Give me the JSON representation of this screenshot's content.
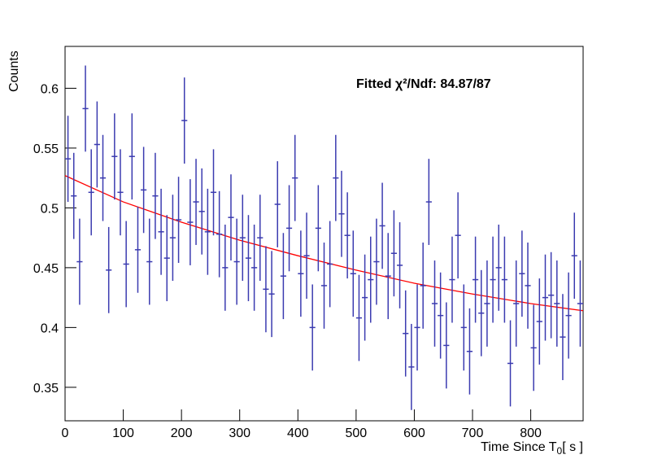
{
  "chart_data": {
    "type": "errorbar",
    "y_label": "Counts",
    "x_label_parts": [
      "Time Since T",
      "0",
      "[ s ]"
    ],
    "annotation": "Fitted χ²/Ndf: 84.87/87",
    "xlim": [
      0,
      890
    ],
    "ylim": [
      0.322,
      0.635
    ],
    "xticks": [
      0,
      100,
      200,
      300,
      400,
      500,
      600,
      700,
      800
    ],
    "yticks": [
      0.35,
      0.4,
      0.45,
      0.5,
      0.55,
      0.6
    ],
    "bin_half_width": 5,
    "marker_color": "#3b3bb0",
    "fit_color": "#ff0000",
    "x": [
      5,
      15,
      25,
      35,
      45,
      55,
      65,
      75,
      85,
      95,
      105,
      115,
      125,
      135,
      145,
      155,
      165,
      175,
      185,
      195,
      205,
      215,
      225,
      235,
      245,
      255,
      265,
      275,
      285,
      295,
      305,
      315,
      325,
      335,
      345,
      355,
      365,
      375,
      385,
      395,
      405,
      415,
      425,
      435,
      445,
      455,
      465,
      475,
      485,
      495,
      505,
      515,
      525,
      535,
      545,
      555,
      565,
      575,
      585,
      595,
      605,
      615,
      625,
      635,
      645,
      655,
      665,
      675,
      685,
      695,
      705,
      715,
      725,
      735,
      745,
      755,
      765,
      775,
      785,
      795,
      805,
      815,
      825,
      835,
      845,
      855,
      865,
      875,
      885
    ],
    "values": [
      0.541,
      0.51,
      0.455,
      0.583,
      0.513,
      0.553,
      0.525,
      0.448,
      0.543,
      0.513,
      0.453,
      0.543,
      0.465,
      0.515,
      0.455,
      0.51,
      0.48,
      0.458,
      0.475,
      0.49,
      0.573,
      0.488,
      0.505,
      0.497,
      0.48,
      0.513,
      0.478,
      0.45,
      0.492,
      0.455,
      0.475,
      0.458,
      0.45,
      0.475,
      0.432,
      0.428,
      0.503,
      0.443,
      0.483,
      0.525,
      0.445,
      0.46,
      0.4,
      0.483,
      0.435,
      0.453,
      0.525,
      0.495,
      0.477,
      0.445,
      0.408,
      0.425,
      0.44,
      0.455,
      0.485,
      0.443,
      0.462,
      0.452,
      0.395,
      0.367,
      0.4,
      0.435,
      0.505,
      0.42,
      0.41,
      0.385,
      0.44,
      0.477,
      0.4,
      0.38,
      0.44,
      0.412,
      0.42,
      0.44,
      0.45,
      0.44,
      0.37,
      0.42,
      0.445,
      0.435,
      0.383,
      0.405,
      0.425,
      0.427,
      0.42,
      0.392,
      0.41,
      0.46,
      0.42
    ],
    "errors": [
      0.036,
      0.036,
      0.036,
      0.036,
      0.036,
      0.036,
      0.036,
      0.036,
      0.036,
      0.036,
      0.036,
      0.036,
      0.036,
      0.036,
      0.036,
      0.036,
      0.036,
      0.036,
      0.036,
      0.036,
      0.036,
      0.036,
      0.036,
      0.036,
      0.036,
      0.036,
      0.036,
      0.036,
      0.036,
      0.036,
      0.036,
      0.036,
      0.036,
      0.036,
      0.036,
      0.036,
      0.036,
      0.036,
      0.036,
      0.036,
      0.036,
      0.036,
      0.036,
      0.036,
      0.036,
      0.036,
      0.036,
      0.036,
      0.036,
      0.036,
      0.036,
      0.036,
      0.036,
      0.036,
      0.036,
      0.036,
      0.036,
      0.036,
      0.036,
      0.036,
      0.036,
      0.036,
      0.036,
      0.036,
      0.036,
      0.036,
      0.036,
      0.036,
      0.036,
      0.036,
      0.036,
      0.036,
      0.036,
      0.036,
      0.036,
      0.036,
      0.036,
      0.036,
      0.036,
      0.036,
      0.036,
      0.036,
      0.036,
      0.036,
      0.036,
      0.036,
      0.036,
      0.036,
      0.036
    ],
    "fit": {
      "x": [
        0,
        100,
        200,
        300,
        400,
        500,
        600,
        700,
        800,
        890
      ],
      "values": [
        0.527,
        0.505,
        0.488,
        0.473,
        0.46,
        0.448,
        0.437,
        0.428,
        0.42,
        0.414
      ]
    }
  }
}
